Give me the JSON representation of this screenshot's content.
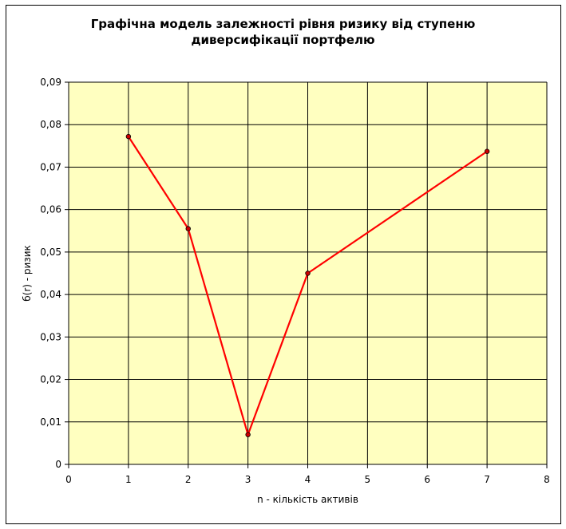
{
  "chart_data": {
    "type": "line",
    "title": "Графічна модель залежності рівня ризику від ступеню\nдиверсифікації портфелю",
    "xlabel": "n - кількість активів",
    "ylabel": "б(r) - ризик",
    "xlim": [
      0,
      8
    ],
    "ylim": [
      0,
      0.09
    ],
    "x_ticks": [
      0,
      1,
      2,
      3,
      4,
      5,
      6,
      7,
      8
    ],
    "y_ticks": [
      0,
      0.01,
      0.02,
      0.03,
      0.04,
      0.05,
      0.06,
      0.07,
      0.08,
      0.09
    ],
    "x_tick_labels": [
      "0",
      "1",
      "2",
      "3",
      "4",
      "5",
      "6",
      "7",
      "8"
    ],
    "y_tick_labels": [
      "0",
      "0,01",
      "0,02",
      "0,03",
      "0,04",
      "0,05",
      "0,06",
      "0,07",
      "0,08",
      "0,09"
    ],
    "grid": true,
    "legend": "none",
    "series": [
      {
        "x": [
          1,
          2,
          3,
          4,
          7
        ],
        "values": [
          0.0772,
          0.0555,
          0.007,
          0.045,
          0.0737
        ]
      }
    ],
    "colors": {
      "plot_background": "#ffffc0",
      "line": "#ff0000",
      "marker_fill": "#cc0000",
      "grid": "#000000"
    }
  }
}
